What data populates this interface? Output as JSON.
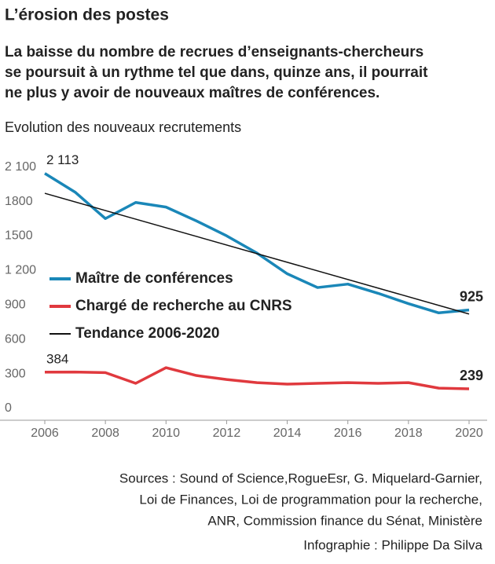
{
  "chart_data": {
    "type": "line",
    "title": "L’érosion des postes",
    "subtitle": [
      "La baisse du nombre de recrues d’enseignants-chercheurs",
      "se poursuit à un rythme tel que dans, quinze ans, il pourrait",
      "ne plus y avoir de nouveaux maîtres de conférences."
    ],
    "y_label": "Evolution des nouveaux recrutements",
    "x": [
      2006,
      2007,
      2008,
      2009,
      2010,
      2011,
      2012,
      2013,
      2014,
      2015,
      2016,
      2017,
      2018,
      2019,
      2020
    ],
    "series": [
      {
        "name": "Maître de conférences",
        "color": "#1a87b8",
        "values": [
          2113,
          1950,
          1720,
          1860,
          1820,
          1700,
          1570,
          1420,
          1240,
          1120,
          1150,
          1070,
          980,
          900,
          925
        ],
        "value_labels": [
          "2 113",
          null,
          null,
          null,
          null,
          null,
          null,
          null,
          null,
          null,
          null,
          null,
          null,
          null,
          "925"
        ]
      },
      {
        "name": "Chargé de recherche au CNRS",
        "color": "#e0393e",
        "values": [
          384,
          385,
          380,
          287,
          423,
          355,
          320,
          293,
          280,
          287,
          293,
          287,
          293,
          245,
          239
        ],
        "value_labels": [
          "384",
          null,
          null,
          null,
          null,
          null,
          null,
          null,
          null,
          null,
          null,
          null,
          null,
          null,
          "239"
        ]
      },
      {
        "name": "Tendance 2006-2020",
        "color": "#111111",
        "x": [
          2006,
          2020
        ],
        "values": [
          1940,
          890
        ]
      }
    ],
    "xlim": [
      2006,
      2020
    ],
    "xticks": [
      2006,
      2008,
      2010,
      2012,
      2014,
      2016,
      2018,
      2020
    ],
    "ylim": [
      0,
      2200
    ],
    "yticks": [
      0,
      300,
      600,
      900,
      {
        "value": 1200,
        "label": "1 200"
      },
      {
        "value": 1500,
        "label": "1500"
      },
      {
        "value": 1800,
        "label": "1800"
      },
      {
        "value": 2100,
        "label": "2 100"
      }
    ],
    "grid": false,
    "sources": [
      "Sources : Sound of Science,RogueEsr, G. Miquelard-Garnier,",
      "Loi de Finances, Loi de programmation pour la recherche,",
      "ANR, Commission finance du Sénat, Ministère"
    ],
    "credit": "Infographie : Philippe Da Silva"
  }
}
